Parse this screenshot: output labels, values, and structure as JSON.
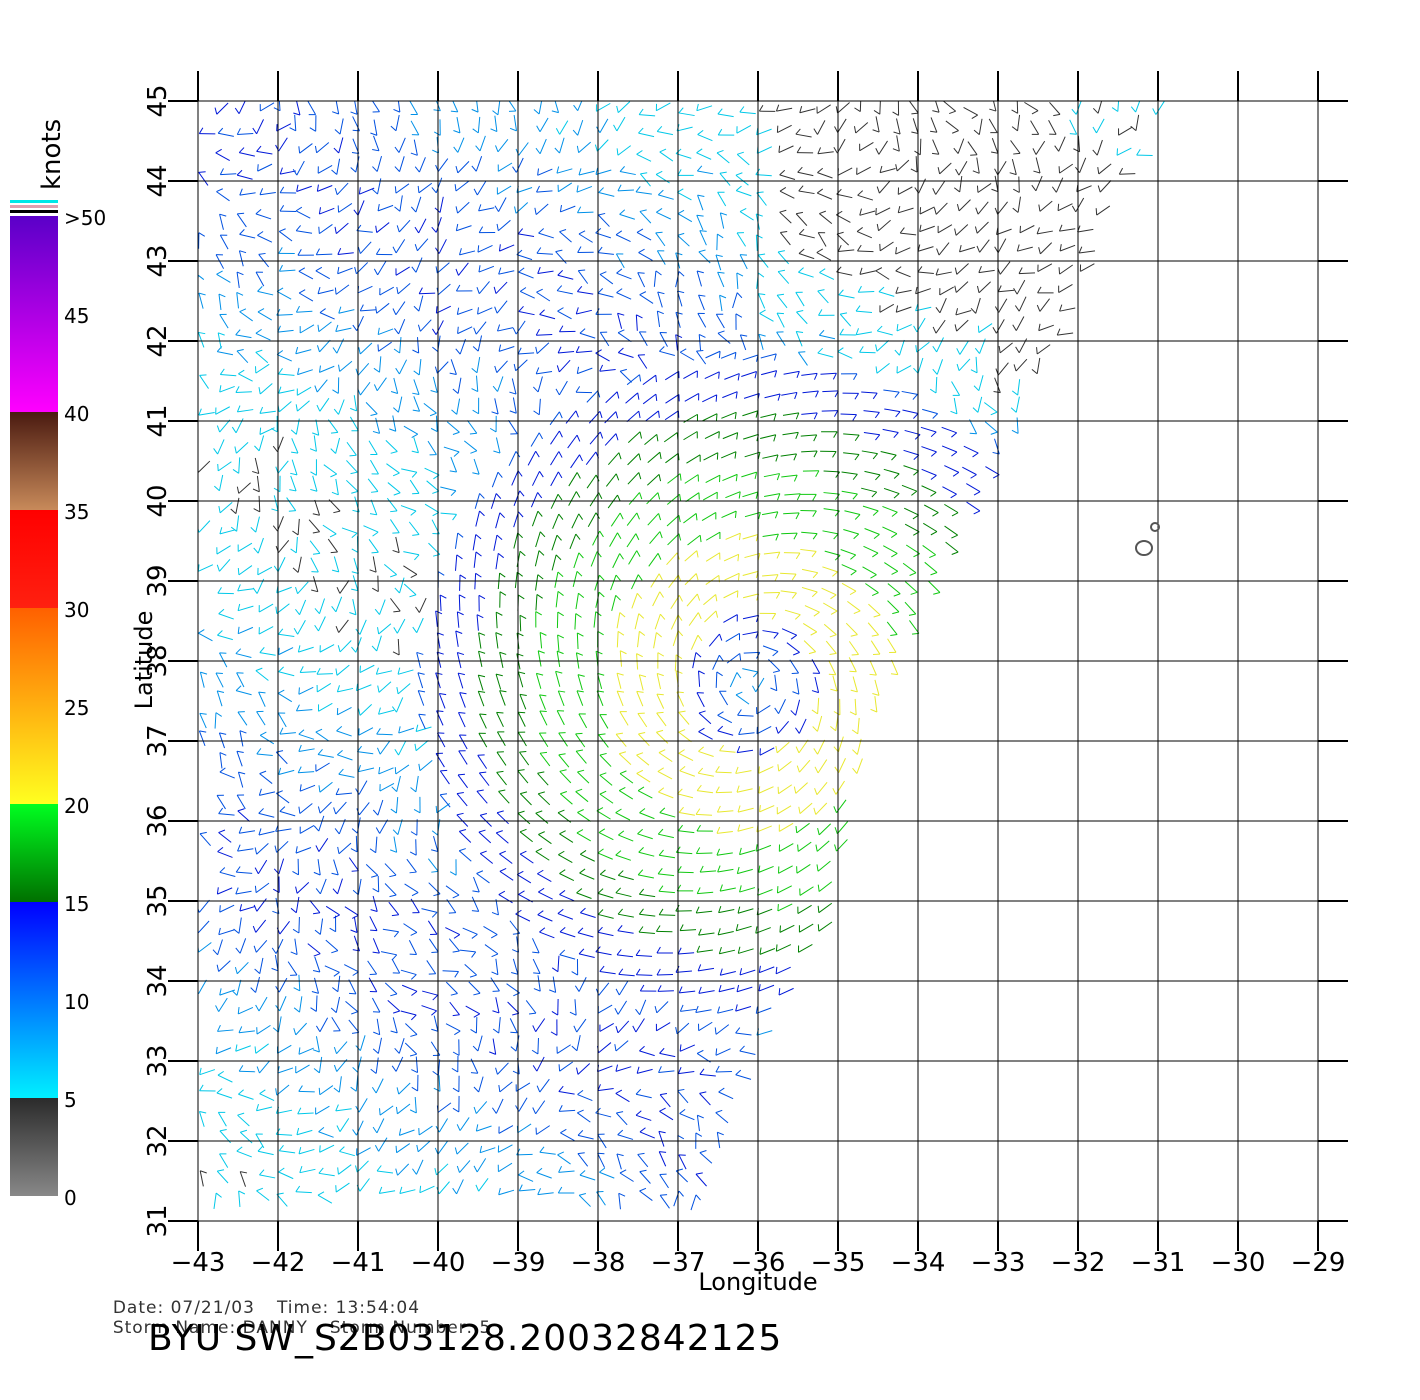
{
  "chart_data": {
    "type": "wind-vector-map",
    "xlabel": "Longitude",
    "ylabel": "Latitude",
    "xlim": [
      -43,
      -29
    ],
    "ylim": [
      31,
      45
    ],
    "x_ticks": [
      "−43",
      "−42",
      "−41",
      "−40",
      "−39",
      "−38",
      "−37",
      "−36",
      "−35",
      "−34",
      "−33",
      "−32",
      "−31",
      "−30",
      "−29"
    ],
    "y_ticks": [
      "31",
      "32",
      "33",
      "34",
      "35",
      "36",
      "37",
      "38",
      "39",
      "40",
      "41",
      "42",
      "43",
      "44",
      "45"
    ],
    "grid": true,
    "storm_center": {
      "lon": -36.1,
      "lat": 37.7
    },
    "swath_edge": [
      [
        -43,
        31.2
      ],
      [
        -36.8,
        31.2
      ],
      [
        -36.2,
        32.8
      ],
      [
        -35.2,
        34.6
      ],
      [
        -34.7,
        36.7
      ],
      [
        -33.9,
        38.4
      ],
      [
        -33.0,
        40.2
      ],
      [
        -32.4,
        41.6
      ],
      [
        -31.8,
        43.3
      ],
      [
        -31.0,
        44.8
      ],
      [
        -31.0,
        45
      ],
      [
        -43,
        45
      ]
    ],
    "islands": [
      {
        "lon": -31.1,
        "lat": 39.4
      },
      {
        "lon": -30.95,
        "lat": 39.5
      }
    ],
    "colorbar": {
      "unit": "knots",
      "labels": [
        ">50",
        "45",
        "40",
        "35",
        "30",
        "25",
        "20",
        "15",
        "10",
        "5",
        "0"
      ],
      "bands": [
        {
          "min": 0,
          "max": 5,
          "colors": [
            "#888888",
            "#2b2b2b"
          ]
        },
        {
          "min": 5,
          "max": 15,
          "colors": [
            "#00f0ff",
            "#0000ff"
          ]
        },
        {
          "min": 15,
          "max": 20,
          "colors": [
            "#007000",
            "#00ff20"
          ]
        },
        {
          "min": 20,
          "max": 30,
          "colors": [
            "#ffff20",
            "#ff6000"
          ]
        },
        {
          "min": 30,
          "max": 35,
          "colors": [
            "#ff2010",
            "#ff0000"
          ]
        },
        {
          "min": 35,
          "max": 40,
          "colors": [
            "#c88a5a",
            "#4a1a10"
          ]
        },
        {
          "min": 40,
          "max": 50,
          "colors": [
            "#ff00ff",
            "#5a00c8"
          ]
        }
      ],
      "top_marks": [
        "#00e8e8",
        "#e0a0b0",
        "#000000"
      ]
    }
  },
  "info": {
    "date_label": "Date: 07/21/03",
    "time_label": "Time: 13:54:04",
    "storm_name": "Storm Name: DANNY",
    "storm_number": "Storm Number: 5",
    "title": "BYU SW_S2B03128.20032842125"
  }
}
